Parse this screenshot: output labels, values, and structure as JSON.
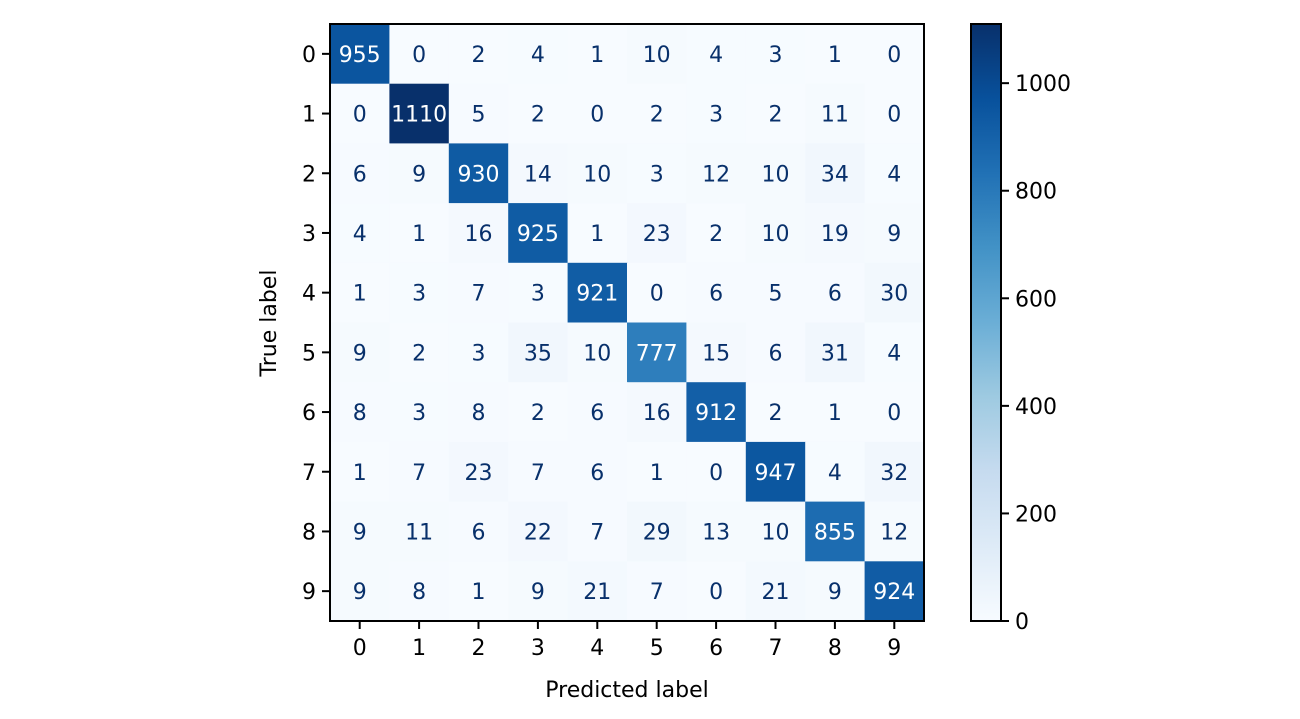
{
  "chart_data": {
    "type": "heatmap",
    "title": "",
    "xlabel": "Predicted label",
    "ylabel": "True label",
    "x_categories": [
      "0",
      "1",
      "2",
      "3",
      "4",
      "5",
      "6",
      "7",
      "8",
      "9"
    ],
    "y_categories": [
      "0",
      "1",
      "2",
      "3",
      "4",
      "5",
      "6",
      "7",
      "8",
      "9"
    ],
    "values": [
      [
        955,
        0,
        2,
        4,
        1,
        10,
        4,
        3,
        1,
        0
      ],
      [
        0,
        1110,
        5,
        2,
        0,
        2,
        3,
        2,
        11,
        0
      ],
      [
        6,
        9,
        930,
        14,
        10,
        3,
        12,
        10,
        34,
        4
      ],
      [
        4,
        1,
        16,
        925,
        1,
        23,
        2,
        10,
        19,
        9
      ],
      [
        1,
        3,
        7,
        3,
        921,
        0,
        6,
        5,
        6,
        30
      ],
      [
        9,
        2,
        3,
        35,
        10,
        777,
        15,
        6,
        31,
        4
      ],
      [
        8,
        3,
        8,
        2,
        6,
        16,
        912,
        2,
        1,
        0
      ],
      [
        1,
        7,
        23,
        7,
        6,
        1,
        0,
        947,
        4,
        32
      ],
      [
        9,
        11,
        6,
        22,
        7,
        29,
        13,
        10,
        855,
        12
      ],
      [
        9,
        8,
        1,
        9,
        21,
        7,
        0,
        21,
        9,
        924
      ]
    ],
    "colormap": "Blues",
    "colorbar": {
      "range": [
        0,
        1110
      ],
      "ticks": [
        0,
        200,
        400,
        600,
        800,
        1000
      ],
      "tick_labels": [
        "0",
        "200",
        "400",
        "600",
        "800",
        "1000"
      ]
    },
    "text_colors": {
      "dark_cell": "#ffffff",
      "light_cell": "#08306b"
    },
    "grid": false
  }
}
